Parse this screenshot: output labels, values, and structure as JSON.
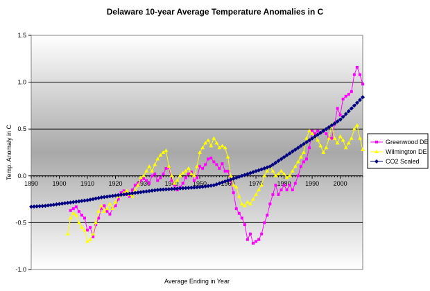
{
  "chart_data": {
    "type": "line",
    "title": "Delaware 10-year Average Temperature Anomalies in C",
    "xlabel": "Average Ending in Year",
    "ylabel": "Temp. Anomaly in C",
    "xlim": [
      1890,
      2008
    ],
    "ylim": [
      -1.0,
      1.5
    ],
    "x_ticks": [
      1890,
      1900,
      1910,
      1920,
      1930,
      1940,
      1950,
      1960,
      1970,
      1980,
      1990,
      2000
    ],
    "y_ticks": [
      1.5,
      1.0,
      0.5,
      0.0,
      -0.5,
      -1.0
    ],
    "y_tick_labels": [
      "1.5",
      "1.0",
      "0.5",
      "0.0",
      "-0.5",
      "-1.0"
    ],
    "grid": "horizontal",
    "legend_position": "right",
    "background": "gray-gradient",
    "series": [
      {
        "name": "Greenwood DE",
        "color": "#ff00ff",
        "marker": "square",
        "x": [
          1904,
          1905,
          1906,
          1907,
          1908,
          1909,
          1910,
          1911,
          1912,
          1913,
          1914,
          1915,
          1916,
          1917,
          1918,
          1919,
          1920,
          1921,
          1922,
          1923,
          1924,
          1925,
          1926,
          1927,
          1928,
          1929,
          1930,
          1931,
          1932,
          1933,
          1934,
          1935,
          1936,
          1937,
          1938,
          1939,
          1940,
          1941,
          1942,
          1943,
          1944,
          1945,
          1946,
          1947,
          1948,
          1949,
          1950,
          1951,
          1952,
          1953,
          1954,
          1955,
          1956,
          1957,
          1958,
          1959,
          1960,
          1961,
          1962,
          1963,
          1964,
          1965,
          1966,
          1967,
          1968,
          1969,
          1970,
          1971,
          1972,
          1973,
          1974,
          1975,
          1976,
          1977,
          1978,
          1979,
          1980,
          1981,
          1982,
          1983,
          1984,
          1985,
          1986,
          1987,
          1988,
          1989,
          1990,
          1991,
          1992,
          1993,
          1994,
          1995,
          1996,
          1997,
          1998,
          1999,
          2000,
          2001,
          2002,
          2003,
          2004,
          2005,
          2006,
          2007,
          2008
        ],
        "values": [
          -0.37,
          -0.35,
          -0.33,
          -0.38,
          -0.42,
          -0.45,
          -0.58,
          -0.55,
          -0.65,
          -0.52,
          -0.45,
          -0.35,
          -0.32,
          -0.38,
          -0.41,
          -0.35,
          -0.32,
          -0.25,
          -0.18,
          -0.16,
          -0.2,
          -0.22,
          -0.15,
          -0.1,
          -0.08,
          -0.05,
          -0.03,
          -0.05,
          -0.08,
          0.0,
          0.02,
          -0.05,
          -0.02,
          0.02,
          0.08,
          0.09,
          -0.05,
          -0.1,
          -0.15,
          -0.12,
          -0.08,
          -0.02,
          0.02,
          0.04,
          -0.05,
          -0.02,
          0.1,
          0.08,
          0.12,
          0.18,
          0.19,
          0.15,
          0.12,
          0.08,
          0.13,
          0.05,
          0.05,
          -0.05,
          -0.18,
          -0.35,
          -0.4,
          -0.45,
          -0.52,
          -0.68,
          -0.62,
          -0.72,
          -0.7,
          -0.68,
          -0.62,
          -0.5,
          -0.42,
          -0.3,
          -0.2,
          -0.1,
          -0.2,
          -0.15,
          -0.1,
          -0.15,
          -0.1,
          -0.15,
          -0.08,
          0.0,
          0.1,
          0.15,
          0.18,
          0.3,
          0.48,
          0.45,
          0.48,
          0.46,
          0.48,
          0.45,
          0.4,
          0.4,
          0.55,
          0.72,
          0.65,
          0.82,
          0.85,
          0.87,
          0.9,
          1.08,
          1.16,
          1.08,
          0.98
        ]
      },
      {
        "name": "Wilmington DE",
        "color": "#ffff00",
        "marker": "triangle",
        "x": [
          1903,
          1904,
          1905,
          1906,
          1907,
          1908,
          1909,
          1910,
          1911,
          1912,
          1913,
          1914,
          1915,
          1916,
          1917,
          1918,
          1919,
          1920,
          1921,
          1922,
          1923,
          1924,
          1925,
          1926,
          1927,
          1928,
          1929,
          1930,
          1931,
          1932,
          1933,
          1934,
          1935,
          1936,
          1937,
          1938,
          1939,
          1940,
          1941,
          1942,
          1943,
          1944,
          1945,
          1946,
          1947,
          1948,
          1949,
          1950,
          1951,
          1952,
          1953,
          1954,
          1955,
          1956,
          1957,
          1958,
          1959,
          1960,
          1961,
          1962,
          1963,
          1964,
          1965,
          1966,
          1967,
          1968,
          1969,
          1970,
          1971,
          1972,
          1973,
          1974,
          1975,
          1976,
          1977,
          1978,
          1979,
          1980,
          1981,
          1982,
          1983,
          1984,
          1985,
          1986,
          1987,
          1988,
          1989,
          1990,
          1991,
          1992,
          1993,
          1994,
          1995,
          1996,
          1997,
          1998,
          1999,
          2000,
          2001,
          2002,
          2003,
          2004,
          2005,
          2006,
          2007,
          2008
        ],
        "values": [
          -0.62,
          -0.45,
          -0.4,
          -0.42,
          -0.5,
          -0.55,
          -0.58,
          -0.7,
          -0.68,
          -0.62,
          -0.5,
          -0.38,
          -0.32,
          -0.38,
          -0.35,
          -0.3,
          -0.35,
          -0.28,
          -0.22,
          -0.2,
          -0.18,
          -0.16,
          -0.2,
          -0.22,
          -0.15,
          -0.1,
          -0.02,
          0.0,
          0.05,
          0.1,
          0.05,
          0.12,
          0.18,
          0.22,
          0.25,
          0.27,
          0.1,
          0.0,
          -0.08,
          -0.05,
          0.0,
          0.03,
          0.05,
          0.08,
          0.02,
          0.0,
          0.1,
          0.25,
          0.3,
          0.35,
          0.38,
          0.32,
          0.4,
          0.35,
          0.3,
          0.32,
          0.3,
          0.2,
          0.0,
          -0.1,
          -0.12,
          -0.22,
          -0.3,
          -0.32,
          -0.28,
          -0.3,
          -0.25,
          -0.2,
          -0.15,
          -0.1,
          0.0,
          0.05,
          0.1,
          0.05,
          0.0,
          0.02,
          0.05,
          0.02,
          -0.02,
          0.0,
          0.05,
          0.1,
          0.15,
          0.2,
          0.25,
          0.4,
          0.48,
          0.45,
          0.42,
          0.38,
          0.32,
          0.25,
          0.3,
          0.4,
          0.55,
          0.4,
          0.35,
          0.42,
          0.38,
          0.3,
          0.35,
          0.4,
          0.5,
          0.54,
          0.4,
          0.28
        ]
      },
      {
        "name": "CO2 Scaled",
        "color": "#000080",
        "marker": "diamond",
        "x": [
          1890,
          1895,
          1900,
          1905,
          1910,
          1915,
          1920,
          1925,
          1930,
          1935,
          1940,
          1945,
          1950,
          1955,
          1960,
          1965,
          1970,
          1975,
          1980,
          1985,
          1990,
          1995,
          2000,
          2005,
          2008
        ],
        "values": [
          -0.33,
          -0.32,
          -0.3,
          -0.28,
          -0.26,
          -0.23,
          -0.21,
          -0.19,
          -0.17,
          -0.15,
          -0.14,
          -0.13,
          -0.12,
          -0.1,
          -0.05,
          0.0,
          0.05,
          0.1,
          0.2,
          0.3,
          0.4,
          0.5,
          0.6,
          0.75,
          0.84
        ]
      }
    ]
  }
}
